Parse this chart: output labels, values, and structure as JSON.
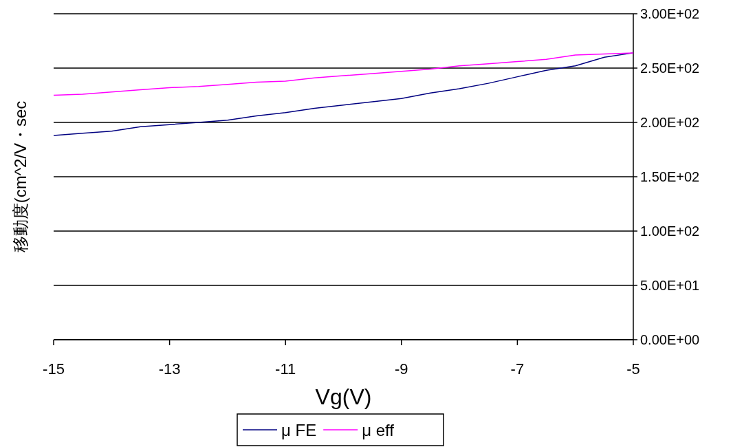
{
  "chart_data": {
    "type": "line",
    "xlabel": "Vg(V)",
    "ylabel": "移動度(cm^2/V・sec",
    "x": [
      -15,
      -14.5,
      -14,
      -13.5,
      -13,
      -12.5,
      -12,
      -11.5,
      -11,
      -10.5,
      -10,
      -9.5,
      -9,
      -8.5,
      -8,
      -7.5,
      -7,
      -6.5,
      -6,
      -5.5,
      -5
    ],
    "series": [
      {
        "name": "μ FE",
        "color": "#000080",
        "values": [
          188,
          190,
          192,
          196,
          198,
          200,
          202,
          206,
          209,
          213,
          216,
          219,
          222,
          227,
          231,
          236,
          242,
          248,
          252,
          260,
          264
        ]
      },
      {
        "name": "μ eff",
        "color": "#ff00ff",
        "values": [
          225,
          226,
          228,
          230,
          232,
          233,
          235,
          237,
          238,
          241,
          243,
          245,
          247,
          249,
          252,
          254,
          256,
          258,
          262,
          263,
          264
        ]
      }
    ],
    "xlim": [
      -15,
      -5
    ],
    "xticks": [
      -15,
      -13,
      -11,
      -9,
      -7,
      -5
    ],
    "ylim": [
      0,
      300
    ],
    "yticks": [
      {
        "value": 0,
        "label": "0.00E+00"
      },
      {
        "value": 50,
        "label": "5.00E+01"
      },
      {
        "value": 100,
        "label": "1.00E+02"
      },
      {
        "value": 150,
        "label": "1.50E+02"
      },
      {
        "value": 200,
        "label": "2.00E+02"
      },
      {
        "value": 250,
        "label": "2.50E+02"
      },
      {
        "value": 300,
        "label": "3.00E+02"
      }
    ],
    "grid": "y",
    "legend": "bottom",
    "line_style": "solid"
  }
}
